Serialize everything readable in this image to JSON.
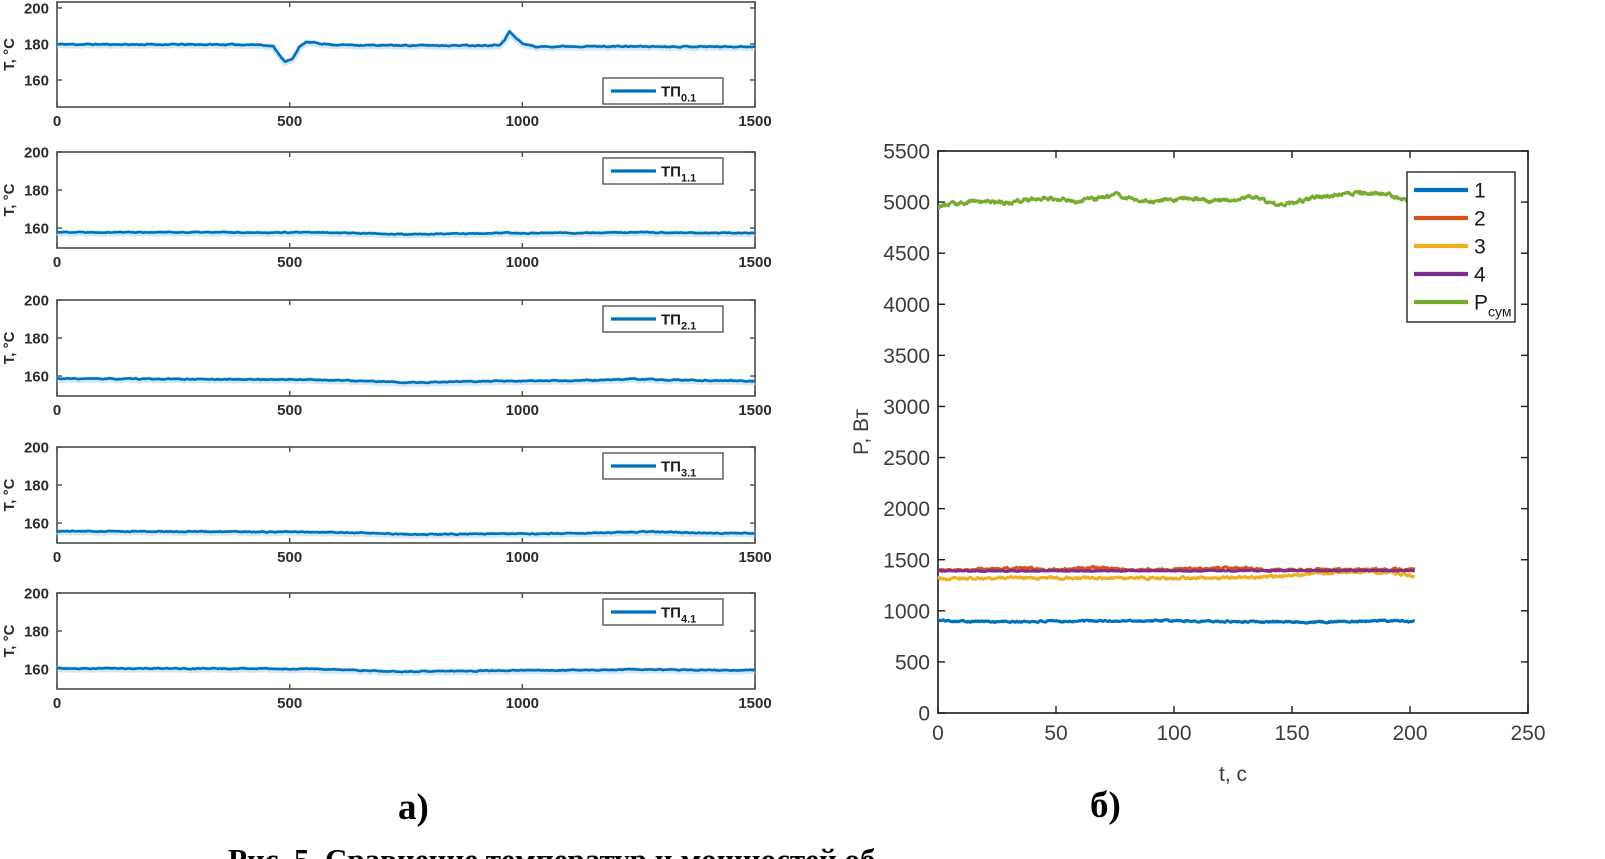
{
  "page": {
    "label_a": "а)",
    "label_b": "б)",
    "caption_fragment": "Рис. 5. Сравнение температур и мощностей об"
  },
  "colors": {
    "blue": "#0072BD",
    "blue_halo": "#a9d6f2",
    "orange": "#D95319",
    "yellow": "#EDB120",
    "purple": "#7E2F8E",
    "green": "#77AC30",
    "axis_left": "#4a4a4a",
    "axis_right": "#1a1a1a",
    "tick_text_left": "#2b2b2b",
    "tick_text_right": "#3c3c3c"
  },
  "chart_data": [
    {
      "id": "tp0",
      "type": "line",
      "panel": "a",
      "title": "",
      "xlabel": "",
      "ylabel": "Т, °С",
      "xlim": [
        0,
        1500
      ],
      "ylim": [
        145,
        203.3
      ],
      "xticks": [
        0,
        500,
        1000,
        1500
      ],
      "yticks": [
        160,
        180,
        200
      ],
      "grid": false,
      "legend_position": "bottom-right",
      "legend": [
        {
          "main": "ТП",
          "sub": "0.1",
          "color": "#0072BD"
        }
      ],
      "series": [
        {
          "name": "ТП 0.1",
          "color": "#0072BD",
          "halo": "#a9d6f2",
          "noise": 0.3,
          "seed": 11,
          "keyframes": [
            [
              0,
              179.8
            ],
            [
              440,
              179.6
            ],
            [
              465,
              178.5
            ],
            [
              490,
              170
            ],
            [
              505,
              171.5
            ],
            [
              520,
              178
            ],
            [
              535,
              181
            ],
            [
              555,
              180.6
            ],
            [
              590,
              179.6
            ],
            [
              700,
              179.2
            ],
            [
              900,
              179.2
            ],
            [
              950,
              179.5
            ],
            [
              962,
              182
            ],
            [
              972,
              187
            ],
            [
              983,
              184
            ],
            [
              1000,
              180.3
            ],
            [
              1030,
              178.4
            ],
            [
              1080,
              178.7
            ],
            [
              1500,
              178.5
            ]
          ]
        }
      ]
    },
    {
      "id": "tp1",
      "type": "line",
      "panel": "a",
      "title": "",
      "xlabel": "",
      "ylabel": "Т, °С",
      "xlim": [
        0,
        1500
      ],
      "ylim": [
        149.5,
        200
      ],
      "xticks": [
        0,
        500,
        1000,
        1500
      ],
      "yticks": [
        160,
        180,
        200
      ],
      "grid": false,
      "legend_position": "top-right",
      "legend": [
        {
          "main": "ТП",
          "sub": "1.1",
          "color": "#0072BD"
        }
      ],
      "series": [
        {
          "name": "ТП 1.1",
          "color": "#0072BD",
          "halo": "#a9d6f2",
          "noise": 0.25,
          "seed": 22,
          "keyframes": [
            [
              0,
              157.9
            ],
            [
              600,
              157.6
            ],
            [
              700,
              157.0
            ],
            [
              760,
              156.6
            ],
            [
              850,
              157.0
            ],
            [
              950,
              157.3
            ],
            [
              1150,
              157.5
            ],
            [
              1250,
              157.7
            ],
            [
              1380,
              157.4
            ],
            [
              1500,
              157.4
            ]
          ]
        }
      ]
    },
    {
      "id": "tp2",
      "type": "line",
      "panel": "a",
      "title": "",
      "xlabel": "",
      "ylabel": "Т, °С",
      "xlim": [
        0,
        1500
      ],
      "ylim": [
        149.5,
        200
      ],
      "xticks": [
        0,
        500,
        1000,
        1500
      ],
      "yticks": [
        160,
        180,
        200
      ],
      "grid": false,
      "legend_position": "top-right",
      "legend": [
        {
          "main": "ТП",
          "sub": "2.1",
          "color": "#0072BD"
        }
      ],
      "series": [
        {
          "name": "ТП 2.1",
          "color": "#0072BD",
          "halo": "#a9d6f2",
          "noise": 0.25,
          "seed": 33,
          "keyframes": [
            [
              0,
              158.6
            ],
            [
              550,
              158.1
            ],
            [
              650,
              157.4
            ],
            [
              760,
              156.5
            ],
            [
              860,
              157.1
            ],
            [
              1000,
              157.3
            ],
            [
              1150,
              157.7
            ],
            [
              1230,
              158.4
            ],
            [
              1320,
              157.9
            ],
            [
              1500,
              157.4
            ]
          ]
        }
      ]
    },
    {
      "id": "tp3",
      "type": "line",
      "panel": "a",
      "title": "",
      "xlabel": "",
      "ylabel": "Т, °С",
      "xlim": [
        0,
        1500
      ],
      "ylim": [
        149.5,
        200
      ],
      "xticks": [
        0,
        500,
        1000,
        1500
      ],
      "yticks": [
        160,
        180,
        200
      ],
      "grid": false,
      "legend_position": "top-right",
      "legend": [
        {
          "main": "ТП",
          "sub": "3.1",
          "color": "#0072BD"
        }
      ],
      "series": [
        {
          "name": "ТП 3.1",
          "color": "#0072BD",
          "halo": "#a9d6f2",
          "noise": 0.25,
          "seed": 44,
          "keyframes": [
            [
              0,
              155.7
            ],
            [
              550,
              155.3
            ],
            [
              680,
              154.6
            ],
            [
              780,
              153.9
            ],
            [
              900,
              154.3
            ],
            [
              1100,
              154.5
            ],
            [
              1200,
              155.1
            ],
            [
              1270,
              155.5
            ],
            [
              1380,
              154.8
            ],
            [
              1500,
              154.5
            ]
          ]
        }
      ]
    },
    {
      "id": "tp4",
      "type": "line",
      "panel": "a",
      "title": "",
      "xlabel": "",
      "ylabel": "Т, °С",
      "xlim": [
        0,
        1500
      ],
      "ylim": [
        149.5,
        200
      ],
      "xticks": [
        0,
        500,
        1000,
        1500
      ],
      "yticks": [
        160,
        180,
        200
      ],
      "grid": false,
      "legend_position": "top-right",
      "legend": [
        {
          "main": "ТП",
          "sub": "4.1",
          "color": "#0072BD"
        }
      ],
      "series": [
        {
          "name": "ТП 4.1",
          "color": "#0072BD",
          "halo": "#a9d6f2",
          "noise": 0.25,
          "seed": 55,
          "keyframes": [
            [
              0,
              160.4
            ],
            [
              550,
              160.1
            ],
            [
              660,
              159.2
            ],
            [
              740,
              158.6
            ],
            [
              830,
              158.9
            ],
            [
              1000,
              159.3
            ],
            [
              1150,
              159.4
            ],
            [
              1230,
              159.9
            ],
            [
              1330,
              159.5
            ],
            [
              1500,
              159.4
            ]
          ]
        }
      ]
    },
    {
      "id": "power",
      "type": "line",
      "panel": "b",
      "title": "",
      "xlabel": "t, с",
      "ylabel": "P, Вт",
      "xlim": [
        0,
        250
      ],
      "ylim": [
        0,
        5500
      ],
      "xticks": [
        0,
        50,
        100,
        150,
        200,
        250
      ],
      "yticks": [
        0,
        500,
        1000,
        1500,
        2000,
        2500,
        3000,
        3500,
        4000,
        4500,
        5000,
        5500
      ],
      "grid": false,
      "legend_position": "top-right",
      "legend": [
        {
          "main": "1",
          "sub": "",
          "color": "#0072BD"
        },
        {
          "main": "2",
          "sub": "",
          "color": "#D95319"
        },
        {
          "main": "3",
          "sub": "",
          "color": "#EDB120"
        },
        {
          "main": "4",
          "sub": "",
          "color": "#7E2F8E"
        },
        {
          "main": "Р",
          "sub": "сум",
          "color": "#77AC30"
        }
      ],
      "series": [
        {
          "name": "1",
          "color": "#0072BD",
          "noise": 8,
          "seed": 101,
          "keyframes": [
            [
              0,
              905
            ],
            [
              30,
              892
            ],
            [
              60,
              900
            ],
            [
              100,
              903
            ],
            [
              130,
              895
            ],
            [
              160,
              890
            ],
            [
              185,
              903
            ],
            [
              202,
              898
            ]
          ]
        },
        {
          "name": "2",
          "color": "#D95319",
          "noise": 10,
          "seed": 102,
          "keyframes": [
            [
              0,
              1390
            ],
            [
              35,
              1420
            ],
            [
              45,
              1400
            ],
            [
              70,
              1428
            ],
            [
              80,
              1400
            ],
            [
              100,
              1405
            ],
            [
              130,
              1424
            ],
            [
              140,
              1400
            ],
            [
              170,
              1405
            ],
            [
              202,
              1405
            ]
          ]
        },
        {
          "name": "3",
          "color": "#EDB120",
          "noise": 11,
          "seed": 103,
          "keyframes": [
            [
              0,
              1318
            ],
            [
              50,
              1322
            ],
            [
              100,
              1320
            ],
            [
              140,
              1330
            ],
            [
              160,
              1368
            ],
            [
              185,
              1385
            ],
            [
              196,
              1360
            ],
            [
              202,
              1345
            ]
          ]
        },
        {
          "name": "4",
          "color": "#7E2F8E",
          "noise": 4,
          "seed": 104,
          "keyframes": [
            [
              0,
              1390
            ],
            [
              100,
              1392
            ],
            [
              202,
              1395
            ]
          ]
        },
        {
          "name": "Р сум",
          "color": "#77AC30",
          "noise": 18,
          "seed": 105,
          "keyframes": [
            [
              0,
              4950
            ],
            [
              15,
              5010
            ],
            [
              30,
              5000
            ],
            [
              45,
              5040
            ],
            [
              60,
              5010
            ],
            [
              75,
              5070
            ],
            [
              90,
              5000
            ],
            [
              105,
              5040
            ],
            [
              120,
              5010
            ],
            [
              135,
              5050
            ],
            [
              145,
              4960
            ],
            [
              160,
              5050
            ],
            [
              175,
              5080
            ],
            [
              190,
              5080
            ],
            [
              200,
              5000
            ]
          ]
        }
      ]
    }
  ]
}
